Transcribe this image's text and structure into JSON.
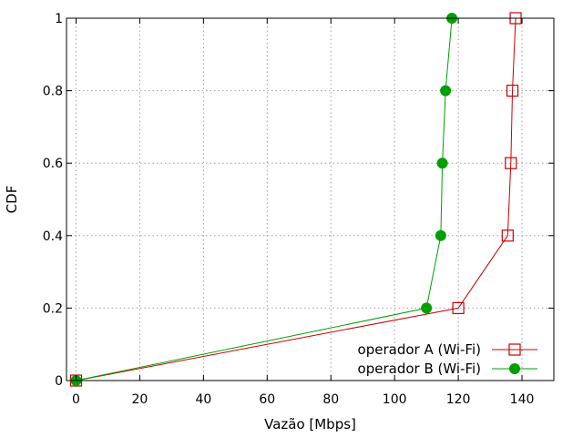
{
  "chart_data": {
    "type": "line",
    "xlabel": "Vazão [Mbps]",
    "ylabel": "CDF",
    "xlim": [
      -3,
      150
    ],
    "ylim": [
      0,
      1
    ],
    "x_ticks": [
      0,
      20,
      40,
      60,
      80,
      100,
      120,
      140
    ],
    "y_ticks": [
      0,
      0.2,
      0.4,
      0.6,
      0.8,
      1
    ],
    "y_tick_labels": [
      "0",
      "0.2",
      "0.4",
      "0.6",
      "0.8",
      "1"
    ],
    "grid": true,
    "legend_position": "bottom-right",
    "series": [
      {
        "name": "operador A (Wi-Fi)",
        "color": "#cc0000",
        "marker": "open-square",
        "points": [
          {
            "x": 0,
            "y": 0
          },
          {
            "x": 120,
            "y": 0.2
          },
          {
            "x": 135.5,
            "y": 0.4
          },
          {
            "x": 136.5,
            "y": 0.6
          },
          {
            "x": 137,
            "y": 0.8
          },
          {
            "x": 138,
            "y": 1
          }
        ]
      },
      {
        "name": "operador B (Wi-Fi)",
        "color": "#00a000",
        "marker": "filled-circle",
        "points": [
          {
            "x": 0,
            "y": 0
          },
          {
            "x": 110,
            "y": 0.2
          },
          {
            "x": 114.5,
            "y": 0.4
          },
          {
            "x": 115,
            "y": 0.6
          },
          {
            "x": 116,
            "y": 0.8
          },
          {
            "x": 118,
            "y": 1
          }
        ]
      }
    ]
  }
}
